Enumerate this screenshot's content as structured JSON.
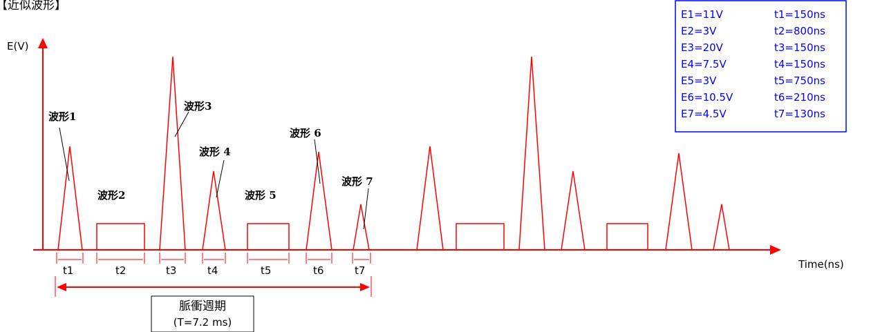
{
  "header": {
    "title": "【近似波形】"
  },
  "axes": {
    "y_label": "E(V)",
    "x_label": "Time(ns)"
  },
  "legend": {
    "rows": [
      {
        "e": "E1=11V",
        "t": "t1=150ns"
      },
      {
        "e": "E2=3V",
        "t": "t2=800ns"
      },
      {
        "e": "E3=20V",
        "t": "t3=150ns"
      },
      {
        "e": "E4=7.5V",
        "t": "t4=150ns"
      },
      {
        "e": "E5=3V",
        "t": "t5=750ns"
      },
      {
        "e": "E6=10.5V",
        "t": "t6=210ns"
      },
      {
        "e": "E7=4.5V",
        "t": "t7=130ns"
      }
    ]
  },
  "waveforms": [
    {
      "label": "波形1",
      "shape": "triangle",
      "amplitude_v": 11,
      "width_ns": 150,
      "duration_label": "t1"
    },
    {
      "label": "波形2",
      "shape": "rectangle",
      "amplitude_v": 3,
      "width_ns": 800,
      "duration_label": "t2"
    },
    {
      "label": "波形3",
      "shape": "triangle",
      "amplitude_v": 20,
      "width_ns": 150,
      "duration_label": "t3"
    },
    {
      "label": "波形 4",
      "shape": "triangle",
      "amplitude_v": 7.5,
      "width_ns": 150,
      "duration_label": "t4"
    },
    {
      "label": "波形 5",
      "shape": "rectangle",
      "amplitude_v": 3,
      "width_ns": 750,
      "duration_label": "t5"
    },
    {
      "label": "波形 6",
      "shape": "triangle",
      "amplitude_v": 10.5,
      "width_ns": 210,
      "duration_label": "t6"
    },
    {
      "label": "波形 7",
      "shape": "triangle",
      "amplitude_v": 4.5,
      "width_ns": 130,
      "duration_label": "t7"
    }
  ],
  "period": {
    "label": "脈衝週期",
    "value": "(T=7.2 ms)"
  },
  "colors": {
    "signal": "#ff0000",
    "legend": "#0000ff",
    "text": "#000000"
  }
}
